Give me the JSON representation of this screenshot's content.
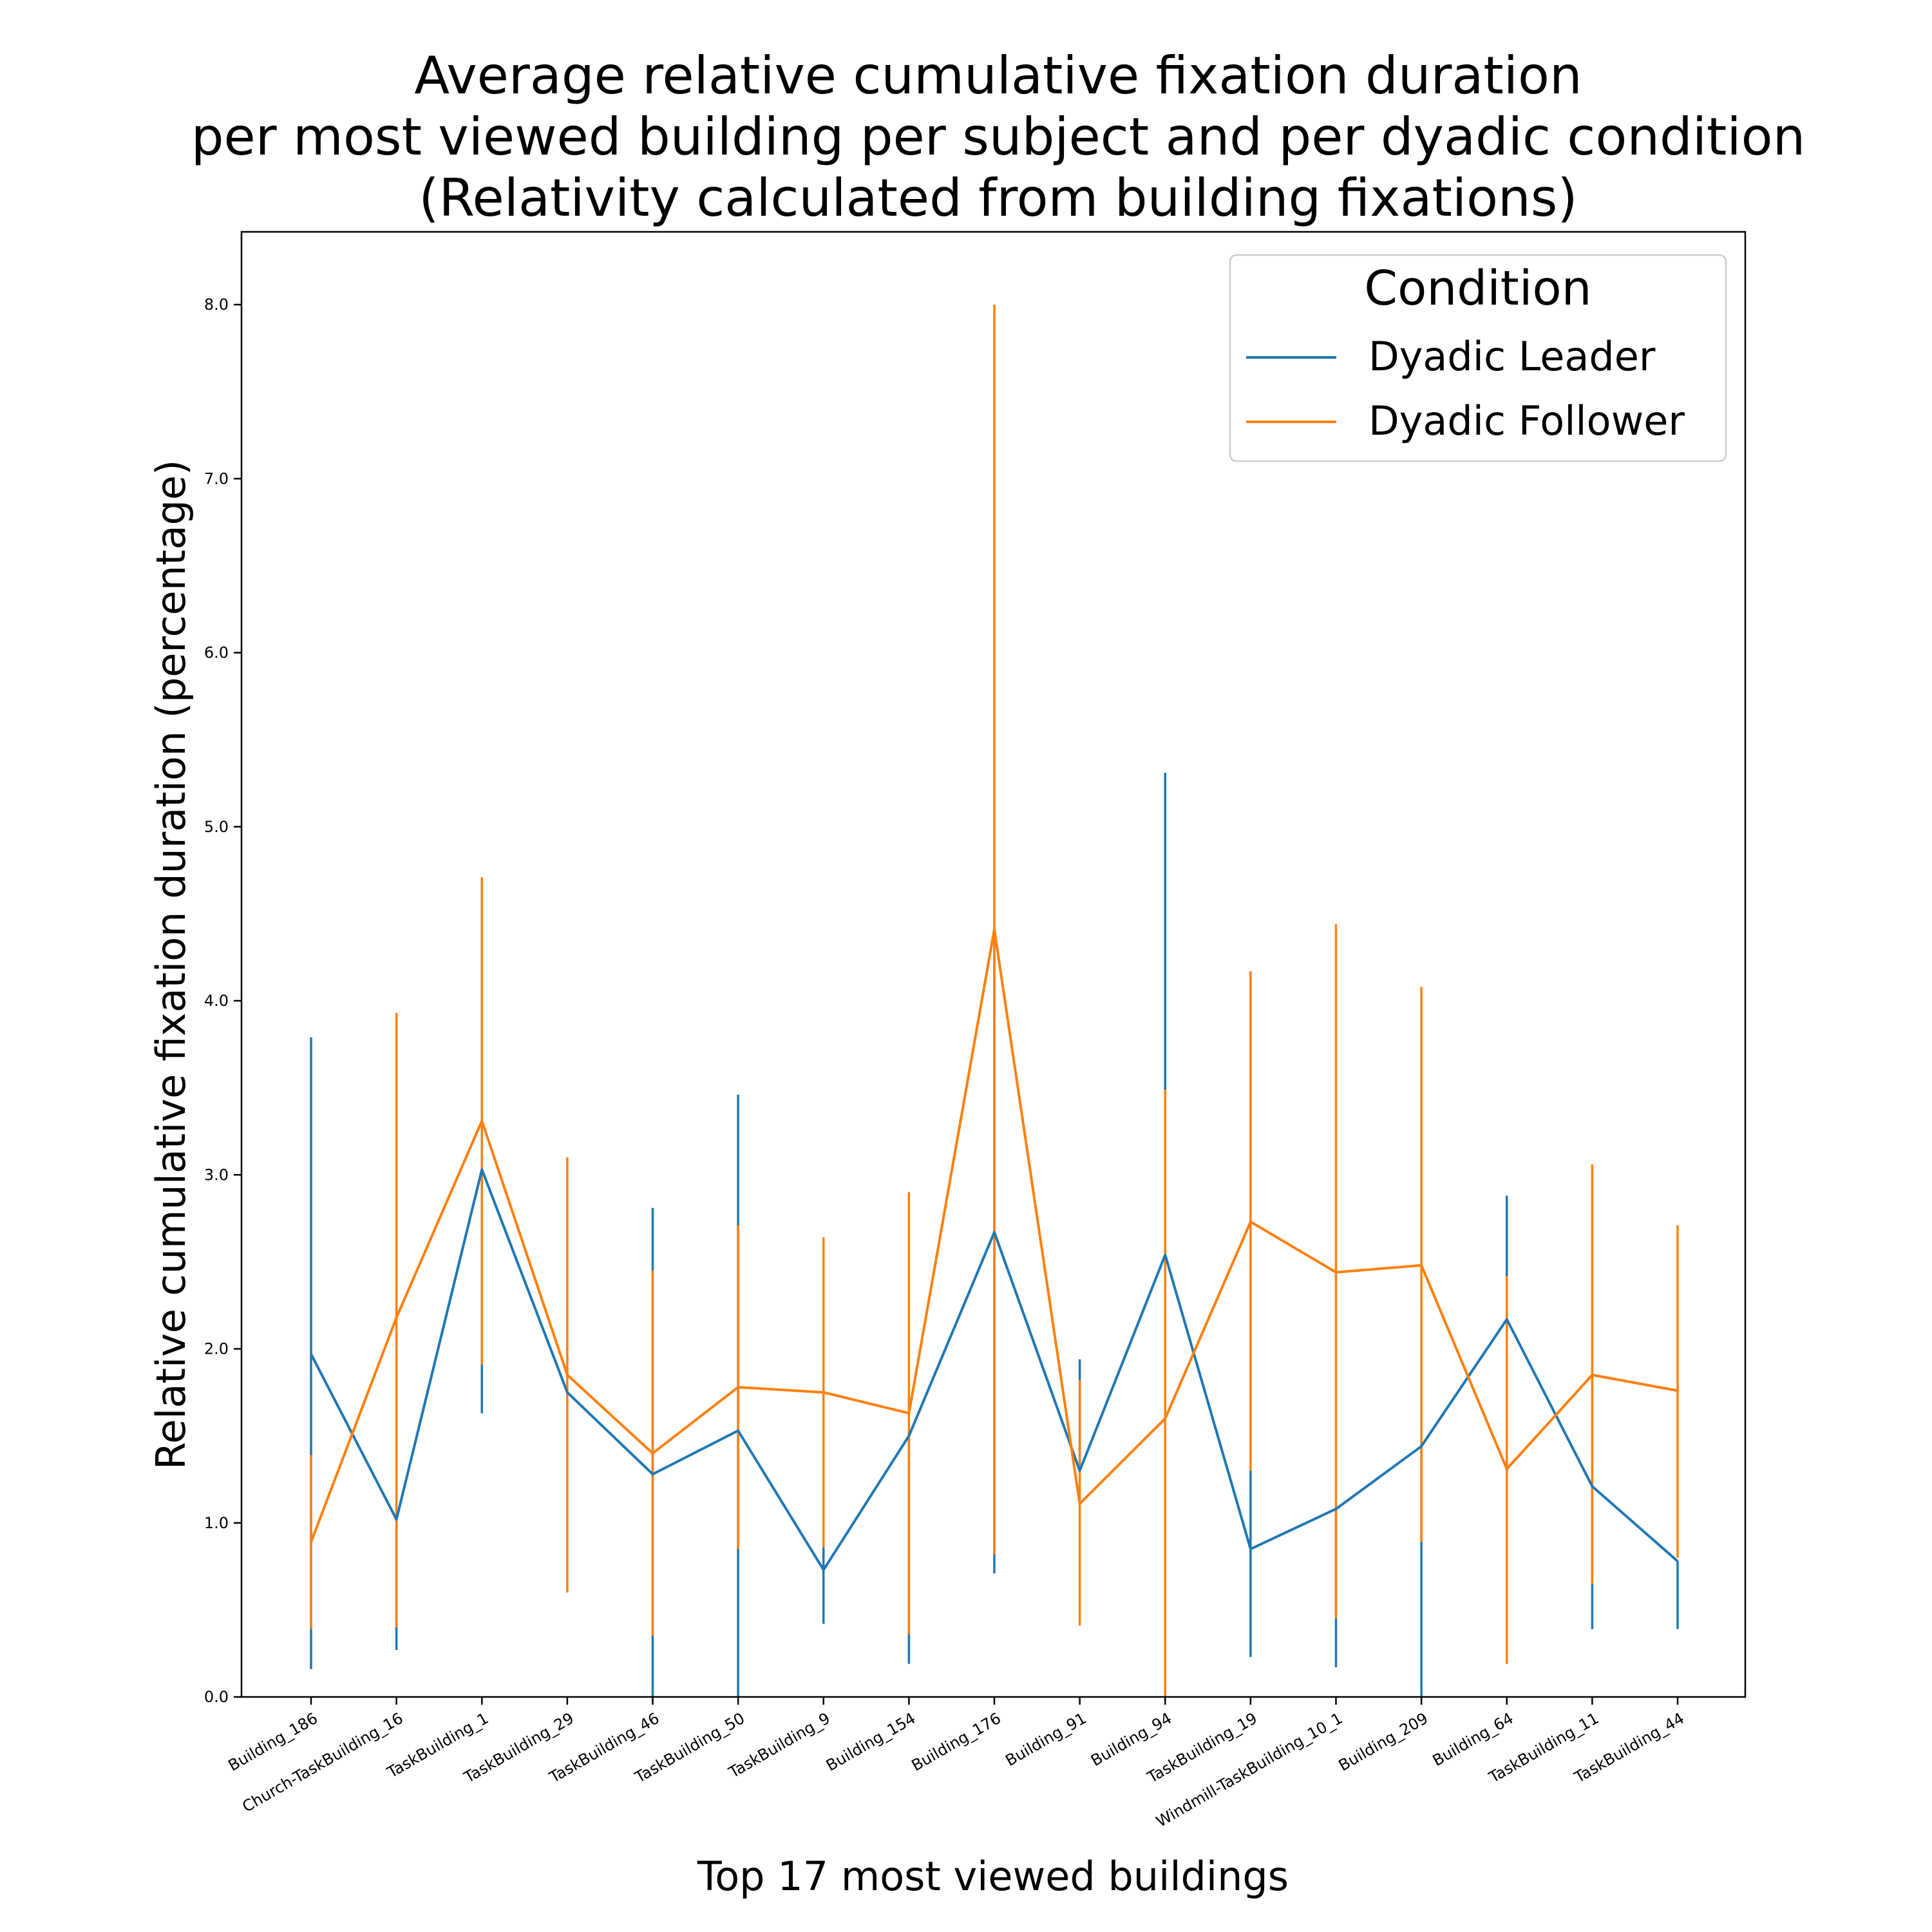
{
  "chart_data": {
    "type": "line",
    "title_lines": [
      "Average relative cumulative fixation duration",
      "per most viewed building per subject and per dyadic condition",
      "(Relativity calculated from building fixations)"
    ],
    "xlabel": "Top 17 most viewed buildings",
    "ylabel": "Relative cumulative fixation duration (percentage)",
    "ylim": [
      0,
      8.4
    ],
    "y_ticks": [
      "0.0",
      "1.0",
      "2.0",
      "3.0",
      "4.0",
      "5.0",
      "6.0",
      "7.0",
      "8.0"
    ],
    "categories": [
      "Building_186",
      "Church-TaskBuilding_16",
      "TaskBuilding_1",
      "TaskBuilding_29",
      "TaskBuilding_46",
      "TaskBuilding_50",
      "TaskBuilding_9",
      "Building_154",
      "Building_176",
      "Building_91",
      "Building_94",
      "TaskBuilding_19",
      "Windmill-TaskBuilding_10_1",
      "Building_209",
      "Building_64",
      "TaskBuilding_11",
      "TaskBuilding_44"
    ],
    "legend": {
      "title": "Condition",
      "placement": "upper right"
    },
    "grid": false,
    "series": [
      {
        "name": "Dyadic Leader",
        "color": "#1f77b4",
        "values": [
          1.97,
          1.02,
          3.03,
          1.75,
          1.28,
          1.53,
          0.73,
          1.5,
          2.67,
          1.3,
          2.54,
          0.85,
          1.08,
          1.44,
          2.17,
          1.21,
          0.78
        ],
        "err_low": [
          0.16,
          0.27,
          1.63,
          1.75,
          0.0,
          0.0,
          0.42,
          0.19,
          0.71,
          1.3,
          0.0,
          0.23,
          0.17,
          0.0,
          1.3,
          0.39,
          0.39
        ],
        "err_high": [
          3.79,
          1.02,
          3.03,
          1.75,
          2.81,
          3.46,
          0.86,
          1.5,
          4.4,
          1.94,
          5.31,
          1.3,
          1.08,
          1.44,
          2.88,
          1.21,
          0.78
        ]
      },
      {
        "name": "Dyadic Follower",
        "color": "#ff7f0e",
        "values": [
          0.89,
          2.18,
          3.31,
          1.85,
          1.4,
          1.78,
          1.75,
          1.63,
          4.41,
          1.11,
          1.6,
          2.73,
          2.44,
          2.48,
          1.31,
          1.85,
          1.76
        ],
        "err_low": [
          0.39,
          0.4,
          1.91,
          0.6,
          0.35,
          0.85,
          0.86,
          0.36,
          0.82,
          0.41,
          0.0,
          1.3,
          0.45,
          0.89,
          0.19,
          0.65,
          0.8
        ],
        "err_high": [
          1.39,
          3.93,
          4.71,
          3.1,
          2.45,
          2.71,
          2.64,
          2.9,
          8.0,
          1.82,
          3.49,
          4.17,
          4.44,
          4.08,
          2.42,
          3.06,
          2.71
        ]
      }
    ]
  }
}
